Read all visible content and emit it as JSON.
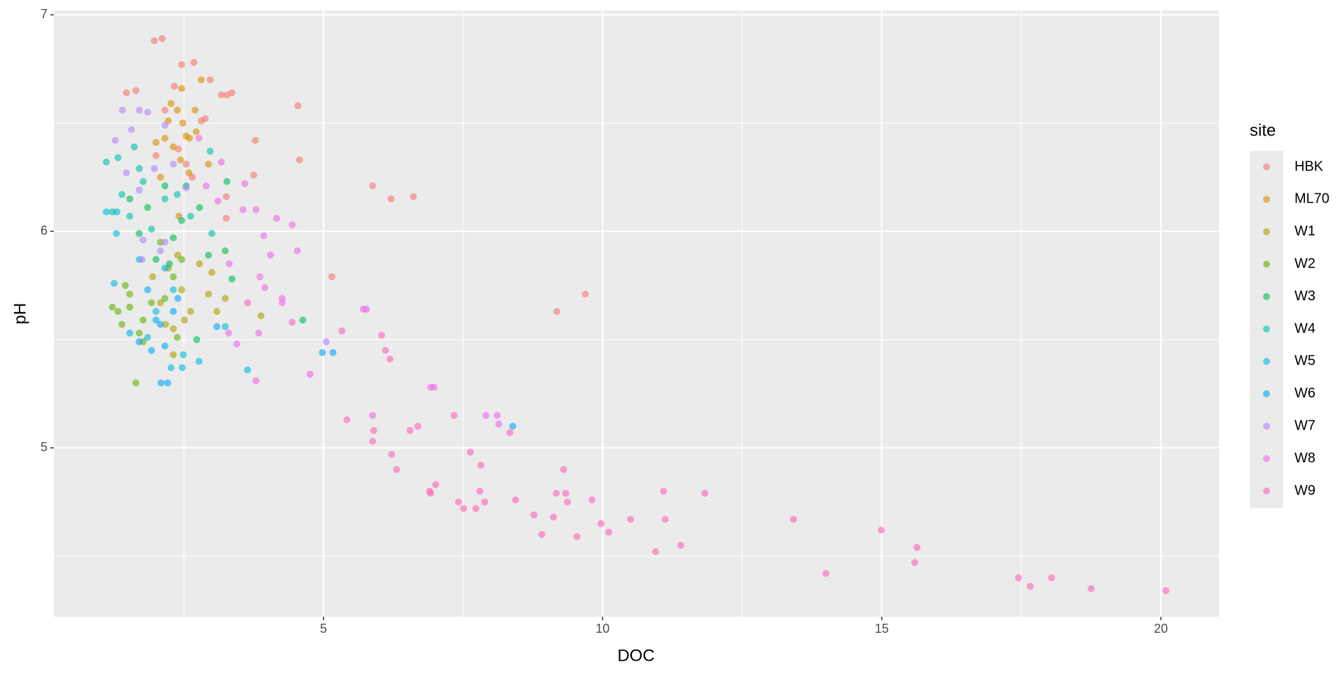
{
  "chart_data": {
    "type": "scatter",
    "x_label": "DOC",
    "y_label": "pH",
    "legend_title": "site",
    "xlim": [
      0.17,
      21.04
    ],
    "xticks": [
      5,
      10,
      15,
      20
    ],
    "ylim": [
      4.22,
      7.02
    ],
    "yticks": [
      5,
      6,
      7
    ],
    "grid": true,
    "legend": "right",
    "series": [
      {
        "name": "HBK",
        "color": "#F8766D",
        "x": [
          1.97,
          2.11,
          2.46,
          2.68,
          2.97,
          3.17,
          3.36,
          1.47,
          1.64,
          2.33,
          4.54,
          4.57,
          3.78,
          5.88,
          6.21,
          6.61,
          5.15,
          9.18,
          9.69,
          3.26,
          2.81,
          2.16,
          2.54,
          3.26,
          2.0,
          2.4,
          3.75,
          2.65,
          2.88,
          3.27
        ],
        "values": [
          6.88,
          6.89,
          6.77,
          6.78,
          6.7,
          6.63,
          6.64,
          6.64,
          6.65,
          6.67,
          6.58,
          6.33,
          6.42,
          6.21,
          6.15,
          6.16,
          5.79,
          5.63,
          5.71,
          6.16,
          6.51,
          6.56,
          6.31,
          6.06,
          6.35,
          6.38,
          6.26,
          6.25,
          6.52,
          6.63
        ]
      },
      {
        "name": "ML70",
        "color": "#DB8E00",
        "x": [
          2.81,
          2.94,
          2.46,
          2.22,
          2.38,
          2.6,
          2.31,
          2.0,
          2.48,
          2.7,
          2.54,
          2.08,
          2.27,
          2.41,
          2.72,
          2.16,
          2.44,
          2.59
        ],
        "values": [
          6.7,
          6.31,
          6.66,
          6.51,
          6.56,
          6.43,
          6.39,
          6.41,
          6.5,
          6.56,
          6.44,
          6.25,
          6.59,
          6.07,
          6.46,
          6.43,
          6.33,
          6.27
        ]
      },
      {
        "name": "W1",
        "color": "#AEA200",
        "x": [
          3.0,
          2.46,
          2.22,
          3.24,
          2.51,
          3.88,
          2.08,
          2.31,
          2.94,
          1.94,
          2.78,
          2.39,
          2.62,
          3.09,
          2.17,
          2.31
        ],
        "values": [
          5.81,
          5.73,
          5.83,
          5.69,
          5.59,
          5.61,
          5.67,
          5.55,
          5.71,
          5.79,
          5.85,
          5.89,
          5.63,
          5.63,
          5.57,
          5.43
        ]
      },
      {
        "name": "W2",
        "color": "#64B200",
        "x": [
          1.64,
          1.32,
          1.53,
          1.77,
          1.39,
          1.7,
          1.92,
          2.16,
          2.31,
          2.46,
          2.08,
          1.53,
          1.77,
          1.22,
          1.45,
          2.38
        ],
        "values": [
          5.3,
          5.63,
          5.65,
          5.59,
          5.57,
          5.53,
          5.67,
          5.69,
          5.79,
          5.87,
          5.95,
          5.71,
          5.49,
          5.65,
          5.75,
          5.51
        ]
      },
      {
        "name": "W3",
        "color": "#00BD5C",
        "x": [
          4.63,
          3.27,
          3.36,
          2.73,
          2.31,
          1.85,
          1.7,
          2.0,
          2.78,
          2.54,
          2.94,
          2.46,
          2.16,
          2.24,
          3.24,
          1.53
        ],
        "values": [
          5.59,
          6.23,
          5.78,
          5.5,
          5.97,
          6.11,
          5.99,
          5.87,
          6.11,
          6.21,
          5.89,
          6.05,
          6.21,
          5.85,
          5.91,
          6.15
        ]
      },
      {
        "name": "W4",
        "color": "#00C1A7",
        "x": [
          1.11,
          2.97,
          1.32,
          1.61,
          1.39,
          1.53,
          1.77,
          1.92,
          2.16,
          2.38,
          3.0,
          1.7,
          1.22,
          2.62
        ],
        "values": [
          6.32,
          6.37,
          6.34,
          6.39,
          6.17,
          6.07,
          6.23,
          6.01,
          6.15,
          6.17,
          5.99,
          6.29,
          6.09,
          6.07
        ]
      },
      {
        "name": "W5",
        "color": "#00BADE",
        "x": [
          1.29,
          1.11,
          1.25,
          2.77,
          3.64,
          2.47,
          2.27,
          2.49,
          1.53,
          1.85,
          2.0,
          2.31,
          2.16,
          1.7,
          3.24,
          1.3
        ],
        "values": [
          5.99,
          6.09,
          5.76,
          5.4,
          5.36,
          5.37,
          5.37,
          5.43,
          5.53,
          5.51,
          5.63,
          5.73,
          5.83,
          5.87,
          5.56,
          6.09
        ]
      },
      {
        "name": "W6",
        "color": "#00A6FF",
        "x": [
          2.09,
          2.21,
          4.98,
          5.17,
          8.39,
          2.0,
          1.92,
          2.16,
          2.08,
          2.31,
          1.85,
          2.39,
          3.09,
          1.7
        ],
        "values": [
          5.3,
          5.3,
          5.44,
          5.44,
          5.1,
          5.59,
          5.45,
          5.47,
          5.57,
          5.63,
          5.73,
          5.69,
          5.56,
          5.49
        ]
      },
      {
        "name": "W7",
        "color": "#B385FF",
        "x": [
          1.27,
          1.4,
          1.7,
          1.56,
          1.85,
          2.16,
          1.97,
          1.77,
          1.75,
          2.16,
          2.54,
          5.05,
          1.47,
          1.7,
          2.31,
          2.08
        ],
        "values": [
          6.42,
          6.56,
          6.56,
          6.47,
          6.55,
          6.49,
          6.29,
          5.96,
          5.87,
          5.95,
          6.2,
          5.49,
          6.27,
          6.19,
          6.31,
          5.91
        ]
      },
      {
        "name": "W8",
        "color": "#EF67EB",
        "x": [
          3.79,
          4.76,
          3.45,
          4.44,
          4.16,
          3.79,
          3.56,
          3.17,
          2.9,
          3.11,
          4.53,
          4.05,
          3.95,
          3.86,
          4.26,
          4.26,
          3.84,
          3.3,
          6.98,
          6.92,
          5.71,
          5.77,
          5.88,
          7.91,
          8.11,
          8.14,
          3.93,
          3.59,
          2.77,
          3.31
        ],
        "values": [
          5.31,
          5.34,
          5.48,
          6.03,
          6.06,
          6.1,
          6.1,
          6.32,
          6.21,
          6.14,
          5.91,
          5.89,
          5.74,
          5.79,
          5.69,
          5.67,
          5.53,
          5.53,
          5.28,
          5.28,
          5.64,
          5.64,
          5.15,
          5.15,
          5.15,
          5.11,
          5.98,
          6.22,
          6.43,
          5.85
        ]
      },
      {
        "name": "W9",
        "color": "#FF63B6",
        "x": [
          5.42,
          5.33,
          6.04,
          6.11,
          6.19,
          5.9,
          5.88,
          6.22,
          6.31,
          6.55,
          6.69,
          6.92,
          7.01,
          6.9,
          7.34,
          7.63,
          7.82,
          7.42,
          7.51,
          7.73,
          7.8,
          7.89,
          8.34,
          8.44,
          8.77,
          8.91,
          9.12,
          9.17,
          9.3,
          9.34,
          9.37,
          9.54,
          9.81,
          9.97,
          10.11,
          10.5,
          10.95,
          11.09,
          11.12,
          11.4,
          11.83,
          13.42,
          14.0,
          14.99,
          15.59,
          15.63,
          17.45,
          17.66,
          18.04,
          18.75,
          20.09,
          4.44,
          3.64
        ],
        "values": [
          5.13,
          5.54,
          5.52,
          5.45,
          5.41,
          5.08,
          5.03,
          4.97,
          4.9,
          5.08,
          5.1,
          4.79,
          4.83,
          4.8,
          5.15,
          4.98,
          4.92,
          4.75,
          4.72,
          4.72,
          4.8,
          4.75,
          5.07,
          4.76,
          4.69,
          4.6,
          4.68,
          4.79,
          4.9,
          4.79,
          4.75,
          4.59,
          4.76,
          4.65,
          4.61,
          4.67,
          4.52,
          4.8,
          4.67,
          4.55,
          4.79,
          4.67,
          4.42,
          4.62,
          4.47,
          4.54,
          4.4,
          4.36,
          4.4,
          4.35,
          4.34,
          5.58,
          5.67
        ]
      }
    ]
  }
}
